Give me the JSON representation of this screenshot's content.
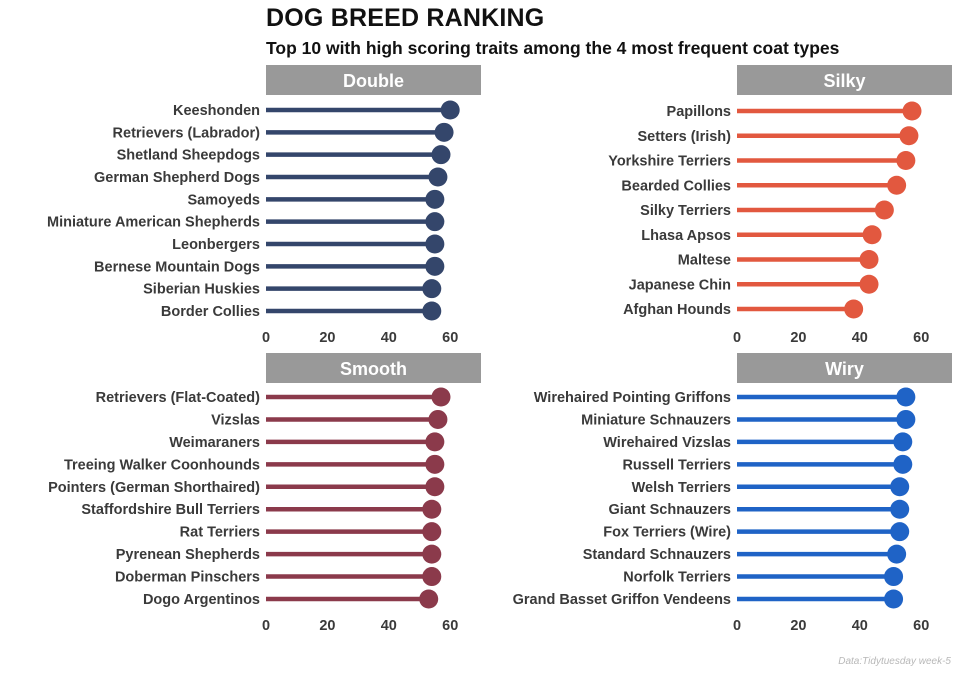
{
  "title": "DOG BREED RANKING",
  "subtitle": "Top 10 with high scoring traits among the 4 most frequent coat types",
  "caption": "Data:Tidytuesday week-5",
  "chart_data": [
    {
      "type": "lollipop",
      "panel": "Double",
      "color": "#34466b",
      "xlim": [
        0,
        70
      ],
      "xticks": [
        0,
        20,
        40,
        60
      ],
      "categories": [
        "Keeshonden",
        "Retrievers (Labrador)",
        "Shetland Sheepdogs",
        "German Shepherd Dogs",
        "Samoyeds",
        "Miniature American Shepherds",
        "Leonbergers",
        "Bernese Mountain Dogs",
        "Siberian Huskies",
        "Border Collies"
      ],
      "values": [
        60,
        58,
        57,
        56,
        55,
        55,
        55,
        55,
        54,
        54
      ]
    },
    {
      "type": "lollipop",
      "panel": "Silky",
      "color": "#e2583f",
      "xlim": [
        0,
        70
      ],
      "xticks": [
        0,
        20,
        40,
        60
      ],
      "categories": [
        "Papillons",
        "Setters (Irish)",
        "Yorkshire Terriers",
        "Bearded Collies",
        "Silky Terriers",
        "Lhasa Apsos",
        "Maltese",
        "Japanese Chin",
        "Afghan Hounds"
      ],
      "values": [
        57,
        56,
        55,
        52,
        48,
        44,
        43,
        43,
        38
      ]
    },
    {
      "type": "lollipop",
      "panel": "Smooth",
      "color": "#8b3a4b",
      "xlim": [
        0,
        70
      ],
      "xticks": [
        0,
        20,
        40,
        60
      ],
      "categories": [
        "Retrievers (Flat-Coated)",
        "Vizslas",
        "Weimaraners",
        "Treeing Walker Coonhounds",
        "Pointers (German Shorthaired)",
        "Staffordshire Bull Terriers",
        "Rat Terriers",
        "Pyrenean Shepherds",
        "Doberman Pinschers",
        "Dogo Argentinos"
      ],
      "values": [
        57,
        56,
        55,
        55,
        55,
        54,
        54,
        54,
        54,
        53
      ]
    },
    {
      "type": "lollipop",
      "panel": "Wiry",
      "color": "#1f63c6",
      "xlim": [
        0,
        70
      ],
      "xticks": [
        0,
        20,
        40,
        60
      ],
      "categories": [
        "Wirehaired Pointing Griffons",
        "Miniature Schnauzers",
        "Wirehaired Vizslas",
        "Russell Terriers",
        "Welsh Terriers",
        "Giant Schnauzers",
        "Fox Terriers (Wire)",
        "Standard Schnauzers",
        "Norfolk Terriers",
        "Grand Basset Griffon Vendeens"
      ],
      "values": [
        55,
        55,
        54,
        54,
        53,
        53,
        53,
        52,
        51,
        51
      ]
    }
  ]
}
